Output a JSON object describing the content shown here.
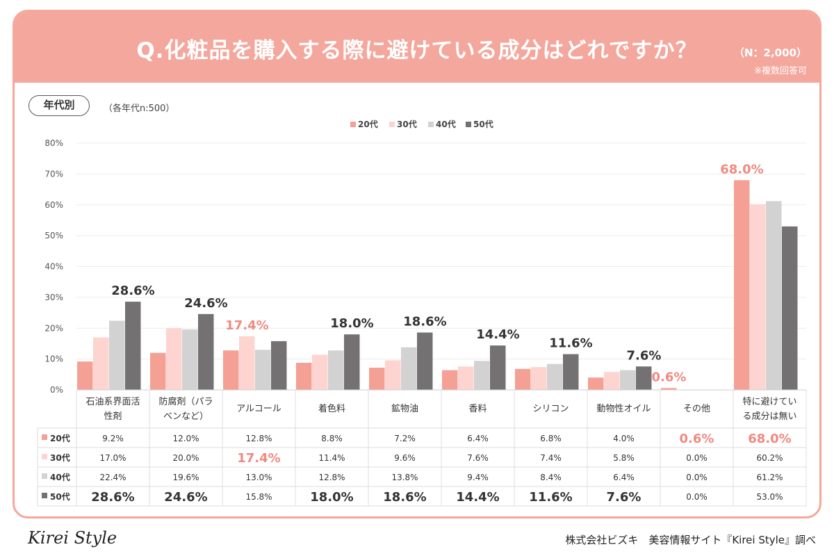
{
  "header": {
    "title": "Q.化粧品を購入する際に避けている成分はどれですか？",
    "n_note": "（N：2,000）",
    "multi_note": "※複数回答可"
  },
  "filter": {
    "pill_label": "年代別",
    "sample_note": "（各年代n:500）"
  },
  "colors": {
    "20代": "#f4a095",
    "30代": "#fdd4d0",
    "40代": "#d2d2d2",
    "50代": "#737171",
    "highlight": "#f08a80"
  },
  "chart_data": {
    "type": "bar",
    "categories": [
      "石油系界面活性剤",
      "防腐剤（パラベンなど）",
      "アルコール",
      "着色料",
      "鉱物油",
      "香料",
      "シリコン",
      "動物性オイル",
      "その他",
      "特に避けている成分は無い"
    ],
    "category_lines": [
      [
        "石油系界面活",
        "性剤"
      ],
      [
        "防腐剤（パラ",
        "ベンなど）"
      ],
      [
        "アルコール"
      ],
      [
        "着色料"
      ],
      [
        "鉱物油"
      ],
      [
        "香料"
      ],
      [
        "シリコン"
      ],
      [
        "動物性オイル"
      ],
      [
        "その他"
      ],
      [
        "特に避けてい",
        "る成分は無い"
      ]
    ],
    "series": [
      {
        "name": "20代",
        "values": [
          9.2,
          12.0,
          12.8,
          8.8,
          7.2,
          6.4,
          6.8,
          4.0,
          0.6,
          68.0
        ]
      },
      {
        "name": "30代",
        "values": [
          17.0,
          20.0,
          17.4,
          11.4,
          9.6,
          7.6,
          7.4,
          5.8,
          0.0,
          60.2
        ]
      },
      {
        "name": "40代",
        "values": [
          22.4,
          19.6,
          13.0,
          12.8,
          13.8,
          9.4,
          8.4,
          6.4,
          0.0,
          61.2
        ]
      },
      {
        "name": "50代",
        "values": [
          28.6,
          24.6,
          15.8,
          18.0,
          18.6,
          14.4,
          11.6,
          7.6,
          0.0,
          53.0
        ]
      }
    ],
    "top_labels": [
      {
        "category": 0,
        "series": 3,
        "text": "28.6%"
      },
      {
        "category": 1,
        "series": 3,
        "text": "24.6%"
      },
      {
        "category": 2,
        "series": 1,
        "text": "17.4%"
      },
      {
        "category": 3,
        "series": 3,
        "text": "18.0%"
      },
      {
        "category": 4,
        "series": 3,
        "text": "18.6%"
      },
      {
        "category": 5,
        "series": 3,
        "text": "14.4%"
      },
      {
        "category": 6,
        "series": 3,
        "text": "11.6%"
      },
      {
        "category": 7,
        "series": 3,
        "text": "7.6%"
      },
      {
        "category": 8,
        "series": 0,
        "text": "0.6%"
      },
      {
        "category": 9,
        "series": 0,
        "text": "68.0%"
      }
    ],
    "y_ticks": [
      "0%",
      "10%",
      "20%",
      "30%",
      "40%",
      "50%",
      "60%",
      "70%",
      "80%"
    ],
    "ylim": [
      0,
      80
    ],
    "legend": [
      "20代",
      "30代",
      "40代",
      "50代"
    ],
    "legend_position": "top-center",
    "table": {
      "rows": [
        {
          "label": "20代",
          "cells": [
            "9.2%",
            "12.0%",
            "12.8%",
            "8.8%",
            "7.2%",
            "6.4%",
            "6.8%",
            "4.0%",
            "0.6%",
            "68.0%"
          ]
        },
        {
          "label": "30代",
          "cells": [
            "17.0%",
            "20.0%",
            "17.4%",
            "11.4%",
            "9.6%",
            "7.6%",
            "7.4%",
            "5.8%",
            "0.0%",
            "60.2%"
          ]
        },
        {
          "label": "40代",
          "cells": [
            "22.4%",
            "19.6%",
            "13.0%",
            "12.8%",
            "13.8%",
            "9.4%",
            "8.4%",
            "6.4%",
            "0.0%",
            "61.2%"
          ]
        },
        {
          "label": "50代",
          "cells": [
            "28.6%",
            "24.6%",
            "15.8%",
            "18.0%",
            "18.6%",
            "14.4%",
            "11.6%",
            "7.6%",
            "0.0%",
            "53.0%"
          ]
        }
      ]
    }
  },
  "footer": {
    "logo": "Kirei Style",
    "credit": "株式会社ビズキ　美容情報サイト『Kirei Style』調べ"
  }
}
